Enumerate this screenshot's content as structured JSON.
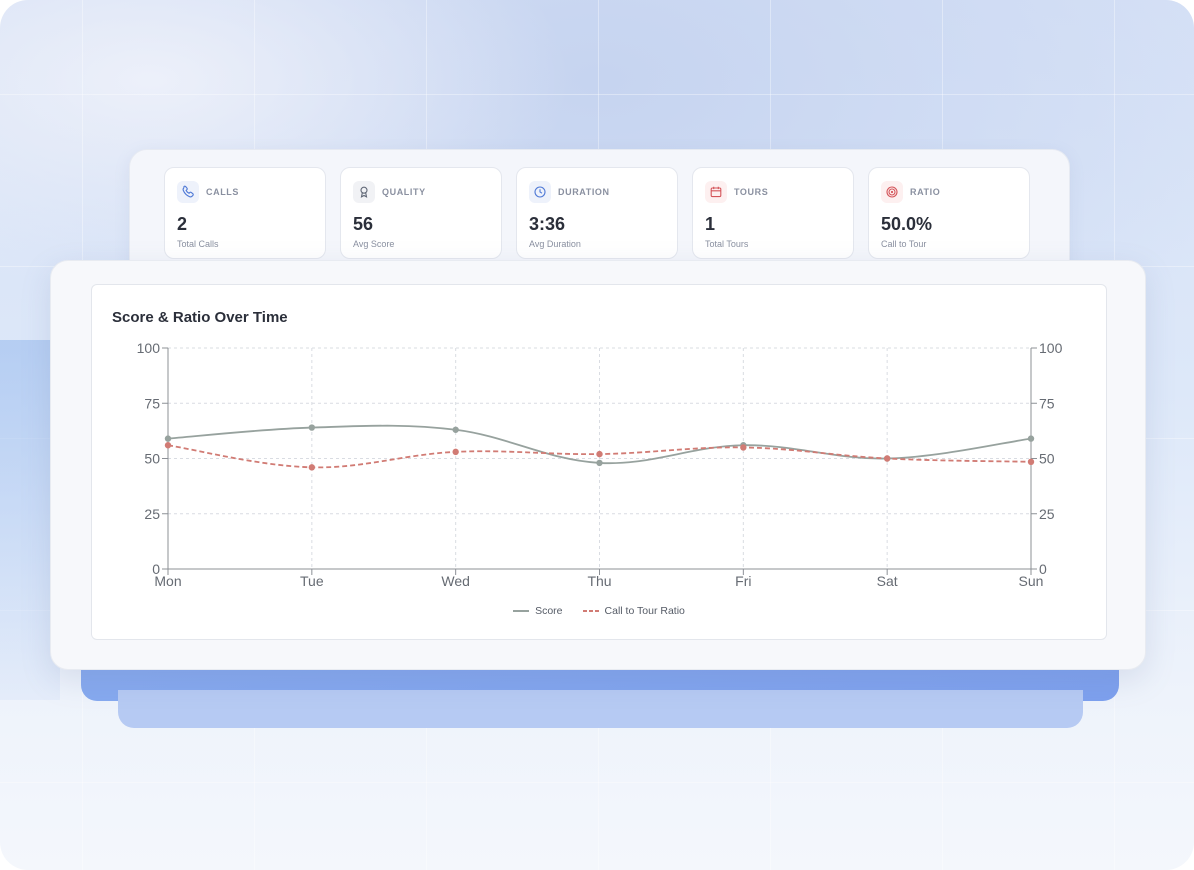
{
  "stats": [
    {
      "label": "CALLS",
      "value": "2",
      "sub": "Total Calls",
      "icon": "phone-icon",
      "color": "#4f79d6",
      "bg": "#eef2fb"
    },
    {
      "label": "QUALITY",
      "value": "56",
      "sub": "Avg Score",
      "icon": "award-icon",
      "color": "#5f6675",
      "bg": "#f1f2f5"
    },
    {
      "label": "DURATION",
      "value": "3:36",
      "sub": "Avg Duration",
      "icon": "clock-icon",
      "color": "#4f79d6",
      "bg": "#eef2fb"
    },
    {
      "label": "TOURS",
      "value": "1",
      "sub": "Total Tours",
      "icon": "calendar-icon",
      "color": "#d4555a",
      "bg": "#fdf0f0"
    },
    {
      "label": "RATIO",
      "value": "50.0%",
      "sub": "Call to Tour",
      "icon": "target-icon",
      "color": "#d4555a",
      "bg": "#fdf0f0"
    }
  ],
  "chart_data": {
    "type": "line",
    "title": "Score & Ratio Over Time",
    "categories": [
      "Mon",
      "Tue",
      "Wed",
      "Thu",
      "Fri",
      "Sat",
      "Sun"
    ],
    "ylim": [
      0,
      100
    ],
    "y2lim": [
      0,
      100
    ],
    "yticks": [
      0,
      25,
      50,
      75,
      100
    ],
    "grid": true,
    "legend_position": "bottom",
    "series": [
      {
        "name": "Score",
        "values": [
          59,
          64,
          63,
          48,
          56,
          50,
          59
        ],
        "color": "#97a29e",
        "style": "solid"
      },
      {
        "name": "Call to Tour Ratio",
        "values": [
          56,
          46,
          53,
          52,
          55,
          50,
          48.5
        ],
        "color": "#d17b74",
        "style": "dashed"
      }
    ]
  }
}
